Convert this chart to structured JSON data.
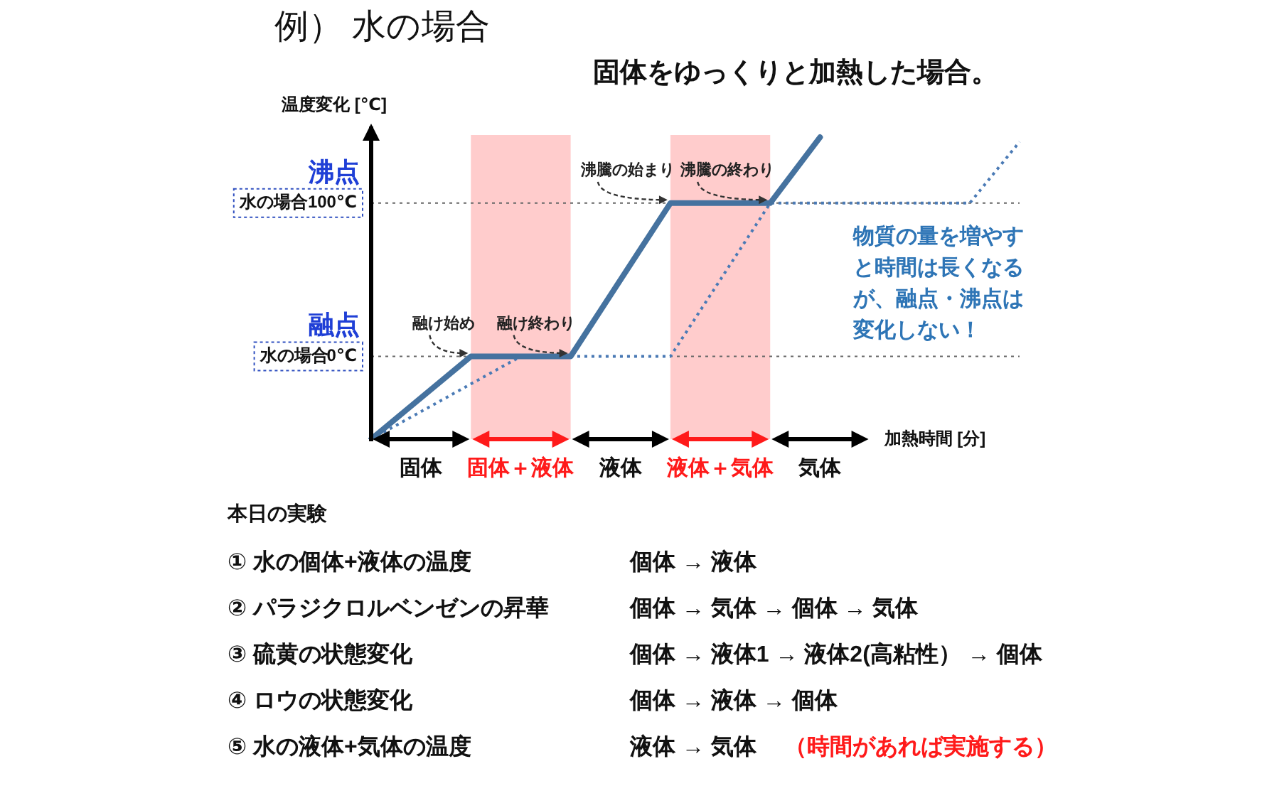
{
  "chart_data": {
    "type": "line",
    "title": "例） 水の場合",
    "subtitle": "固体をゆっくりと加熱した場合。",
    "xlabel": "加熱時間 [分]",
    "ylabel": "温度変化 [℃]",
    "categories": [
      null,
      "固体",
      null,
      "固体＋液体",
      null,
      "液体",
      null,
      "液体＋気体",
      null,
      "気体",
      null,
      null,
      null,
      null
    ],
    "series": [
      {
        "color": "#45729f",
        "line_style": "solid",
        "values": [
          -54,
          -27,
          0,
          0,
          0,
          50,
          100,
          100,
          100,
          143,
          null,
          null,
          null,
          null
        ]
      },
      {
        "color": "#4a7ab5",
        "line_style": "dotted",
        "values": [
          -54,
          -36,
          -18,
          0,
          0,
          0,
          0,
          50,
          100,
          100,
          100,
          100,
          100,
          140
        ]
      }
    ],
    "ylim": [
      -54,
      150
    ],
    "yticks": [
      {
        "value": 0,
        "label": "0℃"
      },
      {
        "value": 100,
        "label": "100℃"
      }
    ],
    "grid": "y",
    "marker": "none",
    "annotations": [
      "融点",
      "沸点",
      "融け始め",
      "融け終わり",
      "沸騰の始まり",
      "沸騰の終わり",
      "水の場合",
      "水の場合",
      "物質の量を増やすと時間は長くなるが、融点・沸点は変化しない！",
      "本日の実験",
      "① 水の個体+液体の温度",
      "個体 → 液体",
      "② パラジクロルベンゼンの昇華",
      "個体 → 気体 → 個体 → 気体",
      "③ 硫黄の状態変化",
      "個体 → 液体1 → 液体2(高粘性） → 個体",
      "④ ロウの状態変化",
      "個体 → 液体 → 個体",
      "⑤ 水の液体+気体の温度",
      "液体 → 気体",
      "（時間があれば実施する）"
    ]
  }
}
